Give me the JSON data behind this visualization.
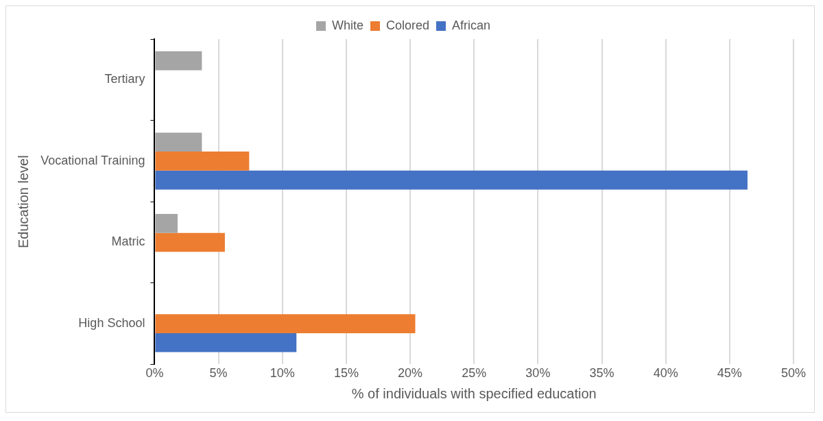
{
  "chart_data": {
    "type": "bar",
    "orientation": "horizontal",
    "xlabel": "% of individuals with specified education",
    "ylabel": "Education level",
    "categories": [
      "Tertiary",
      "Vocational Training",
      "Matric",
      "High School"
    ],
    "series": [
      {
        "name": "White",
        "color": "#a5a5a5",
        "values": [
          3.7,
          3.7,
          1.8,
          0
        ]
      },
      {
        "name": "Colored",
        "color": "#ed7d31",
        "values": [
          0,
          7.4,
          5.5,
          20.4
        ]
      },
      {
        "name": "African",
        "color": "#4472c4",
        "values": [
          0,
          46.4,
          0,
          11.1
        ]
      }
    ],
    "xlim": [
      0,
      50
    ],
    "xticks": [
      {
        "value": 0,
        "label": "0%"
      },
      {
        "value": 5,
        "label": "5%"
      },
      {
        "value": 10,
        "label": "10%"
      },
      {
        "value": 15,
        "label": "15%"
      },
      {
        "value": 20,
        "label": "20%"
      },
      {
        "value": 25,
        "label": "25%"
      },
      {
        "value": 30,
        "label": "30%"
      },
      {
        "value": 35,
        "label": "35%"
      },
      {
        "value": 40,
        "label": "40%"
      },
      {
        "value": 45,
        "label": "45%"
      },
      {
        "value": 50,
        "label": "50%"
      }
    ],
    "grid": "x",
    "legend": "top"
  }
}
